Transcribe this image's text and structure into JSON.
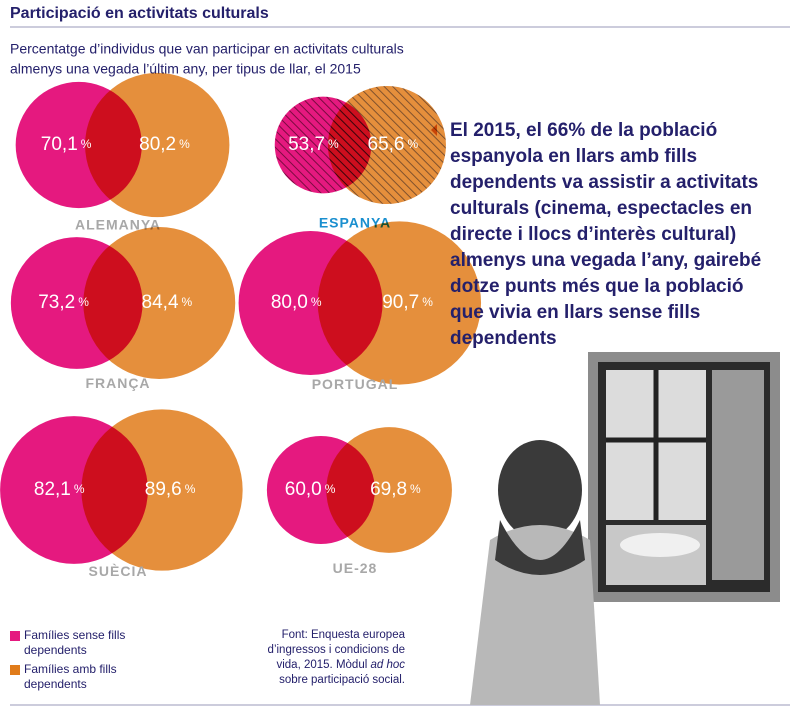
{
  "chart_data": {
    "type": "overlap",
    "title": "Participació en activitats culturals",
    "subtitle": [
      "Percentatge d’individus que van participar en activitats culturals",
      "almenys una vegada l’últim any, per tipus de llar, el 2015"
    ],
    "categories": [
      "ALEMANYA",
      "ESPANYA",
      "FRANÇA",
      "PORTUGAL",
      "SUÈCIA",
      "UE-28"
    ],
    "highlight_index": 1,
    "unit": "%",
    "series": [
      {
        "name": "Famílies sense fills dependents",
        "color": "#e5197f",
        "values": [
          70.1,
          53.7,
          73.2,
          80.0,
          82.1,
          60.0
        ],
        "value_labels": [
          "70,1",
          "53,7",
          "73,2",
          "80,0",
          "82,1",
          "60,0"
        ]
      },
      {
        "name": "Famílies amb fills dependents",
        "color": "#e07b1a",
        "values": [
          80.2,
          65.6,
          84.4,
          90.7,
          89.6,
          69.8
        ],
        "value_labels": [
          "80,2",
          "65,6",
          "84,4",
          "90,7",
          "89,6",
          "69,8"
        ]
      }
    ],
    "callout": "El 2015, el 66% de la població espanyola en llars amb fills dependents va assistir a activitats culturals (cinema, espectacles en directe i llocs d’interès cultural) almenys una vegada l’any, gairebé dotze punts més que la població que vivia en llars sense fills dependents",
    "source": [
      "Font: Enquesta europea d’ingressos i condicions de vida, 2015. Mòdul ",
      "ad hoc",
      " sobre participació social."
    ]
  }
}
